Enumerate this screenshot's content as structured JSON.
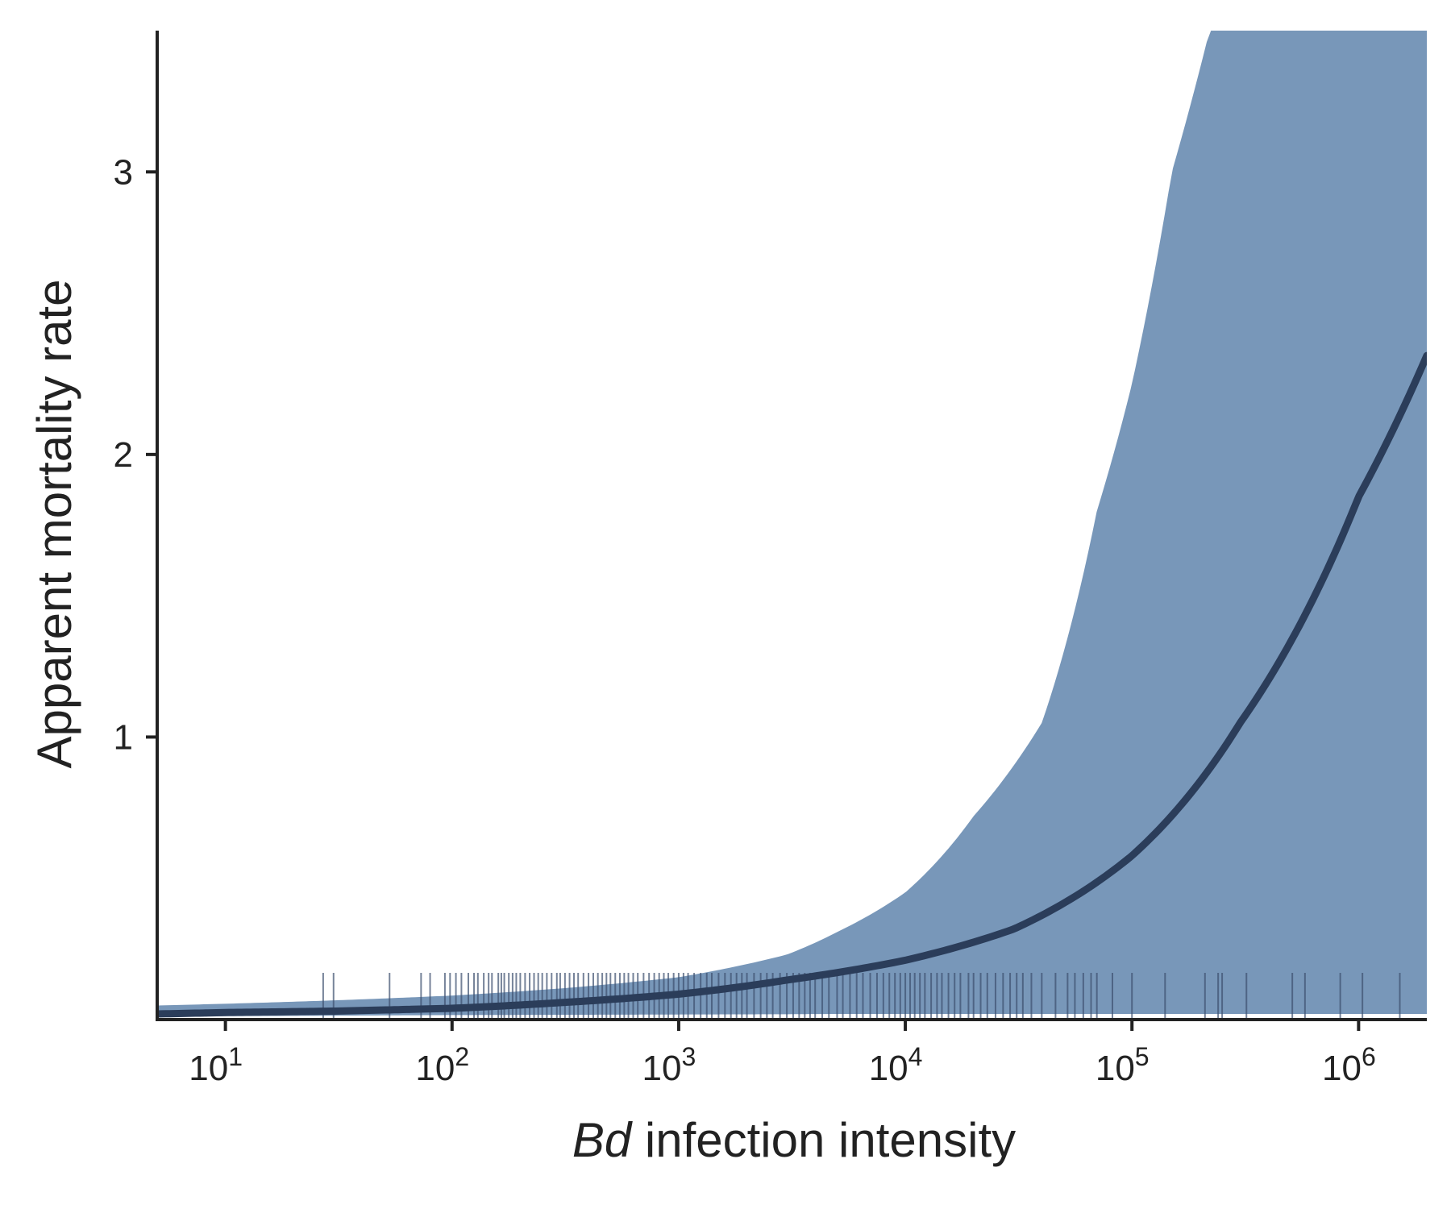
{
  "chart_data": {
    "type": "line",
    "xlabel_italic": "Bd",
    "xlabel_rest": " infection intensity",
    "ylabel": "Apparent mortality rate",
    "x_scale": "log10",
    "xlim": [
      5,
      2000000
    ],
    "ylim": [
      0,
      3.5
    ],
    "x_ticks": [
      {
        "value": 10,
        "base": "10",
        "exp": "1"
      },
      {
        "value": 100,
        "base": "10",
        "exp": "2"
      },
      {
        "value": 1000,
        "base": "10",
        "exp": "3"
      },
      {
        "value": 10000,
        "base": "10",
        "exp": "4"
      },
      {
        "value": 100000,
        "base": "10",
        "exp": "5"
      },
      {
        "value": 1000000,
        "base": "10",
        "exp": "6"
      }
    ],
    "y_ticks": [
      {
        "value": 1,
        "label": "1"
      },
      {
        "value": 2,
        "label": "2"
      },
      {
        "value": 3,
        "label": "3"
      }
    ],
    "grid": false,
    "colors": {
      "band": "#7897b9",
      "line": "#2b3d5a",
      "rug": "#3c4f6e",
      "axis": "#222222"
    },
    "fit": {
      "x": [
        5,
        10,
        30,
        100,
        300,
        1000,
        3000,
        10000,
        30000,
        100000,
        300000,
        1000000,
        2000000
      ],
      "y": [
        0.02,
        0.025,
        0.03,
        0.04,
        0.06,
        0.09,
        0.14,
        0.21,
        0.32,
        0.58,
        1.05,
        1.85,
        2.35
      ]
    },
    "band": {
      "x": [
        5,
        10,
        30,
        100,
        300,
        1000,
        3000,
        5000,
        10000,
        20000,
        40000,
        70000,
        100000,
        150000,
        220000,
        300000,
        1000000,
        2000000
      ],
      "lower": [
        0.01,
        0.012,
        0.014,
        0.016,
        0.017,
        0.018,
        0.019,
        0.02,
        0.02,
        0.02,
        0.02,
        0.02,
        0.02,
        0.02,
        0.02,
        0.02,
        0.02,
        0.02
      ],
      "upper": [
        0.05,
        0.056,
        0.068,
        0.085,
        0.11,
        0.15,
        0.23,
        0.31,
        0.45,
        0.72,
        1.05,
        1.8,
        2.25,
        3.0,
        3.5,
        3.5,
        3.5,
        3.5
      ]
    },
    "rug": [
      27,
      30,
      53,
      73,
      80,
      93,
      98,
      104,
      110,
      118,
      125,
      130,
      138,
      145,
      150,
      160,
      165,
      170,
      178,
      185,
      192,
      200,
      210,
      220,
      230,
      240,
      250,
      262,
      275,
      290,
      300,
      315,
      330,
      345,
      360,
      380,
      400,
      420,
      440,
      460,
      480,
      500,
      525,
      550,
      575,
      600,
      630,
      660,
      700,
      740,
      780,
      820,
      860,
      900,
      950,
      1000,
      1050,
      1100,
      1170,
      1250,
      1330,
      1400,
      1500,
      1600,
      1700,
      1800,
      1900,
      2000,
      2150,
      2300,
      2450,
      2600,
      2800,
      3000,
      3200,
      3400,
      3600,
      3800,
      4000,
      4300,
      4600,
      5000,
      5300,
      5700,
      6100,
      6500,
      7000,
      7500,
      8000,
      8500,
      9000,
      9500,
      10000,
      10500,
      11000,
      11600,
      12200,
      13000,
      13800,
      14500,
      15500,
      16500,
      17500,
      19000,
      20000,
      21500,
      23000,
      25000,
      27000,
      29000,
      31000,
      33000,
      36000,
      40000,
      46000,
      52000,
      56000,
      61000,
      66000,
      70000,
      82000,
      100000,
      140000,
      210000,
      240000,
      250000,
      320000,
      510000,
      580000,
      830000,
      1040000,
      1520000
    ]
  }
}
